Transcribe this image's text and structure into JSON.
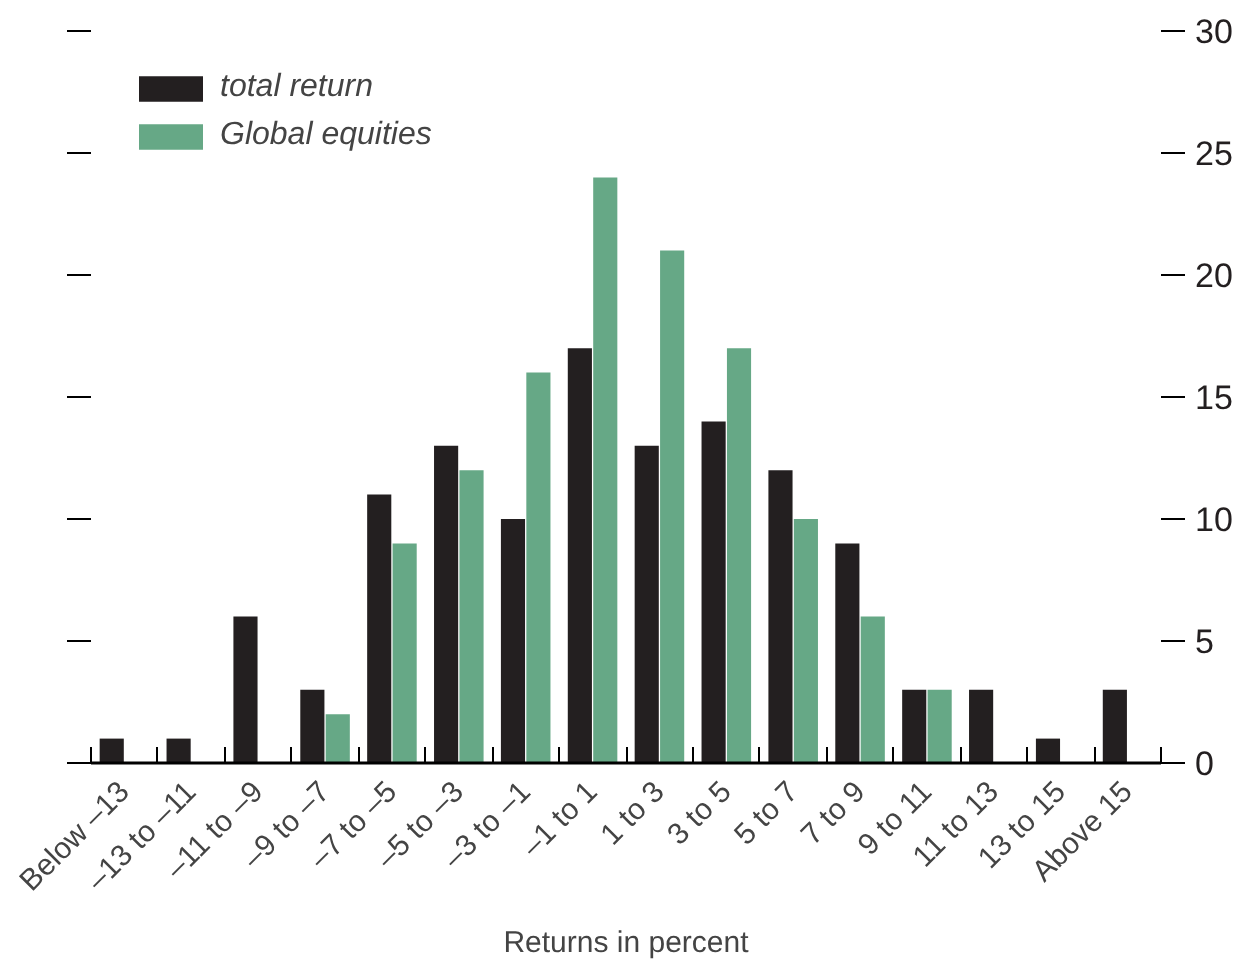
{
  "chart_data": {
    "type": "bar",
    "xlabel": "Returns in percent",
    "categories": [
      "Below –13",
      "–13 to –11",
      "–11 to –9",
      "–9 to –7",
      "–7 to –5",
      "–5 to –3",
      "–3 to –1",
      "–1 to 1",
      "1 to 3",
      "3 to 5",
      "5 to 7",
      "7 to 9",
      "9 to 11",
      "11 to 13",
      "13 to 15",
      "Above 15"
    ],
    "series": [
      {
        "name": "total return",
        "color": "#231f20",
        "values": [
          1,
          1,
          6,
          3,
          11,
          13,
          10,
          17,
          13,
          14,
          12,
          9,
          3,
          3,
          1,
          3
        ]
      },
      {
        "name": "Global equities",
        "color": "#66a886",
        "values": [
          0,
          0,
          0,
          2,
          9,
          12,
          16,
          24,
          21,
          17,
          10,
          6,
          3,
          0,
          0,
          0
        ]
      }
    ],
    "ylim": [
      0,
      30
    ],
    "yticks": [
      0,
      5,
      10,
      15,
      20,
      25,
      30
    ],
    "grid": false,
    "legend": "top left"
  }
}
